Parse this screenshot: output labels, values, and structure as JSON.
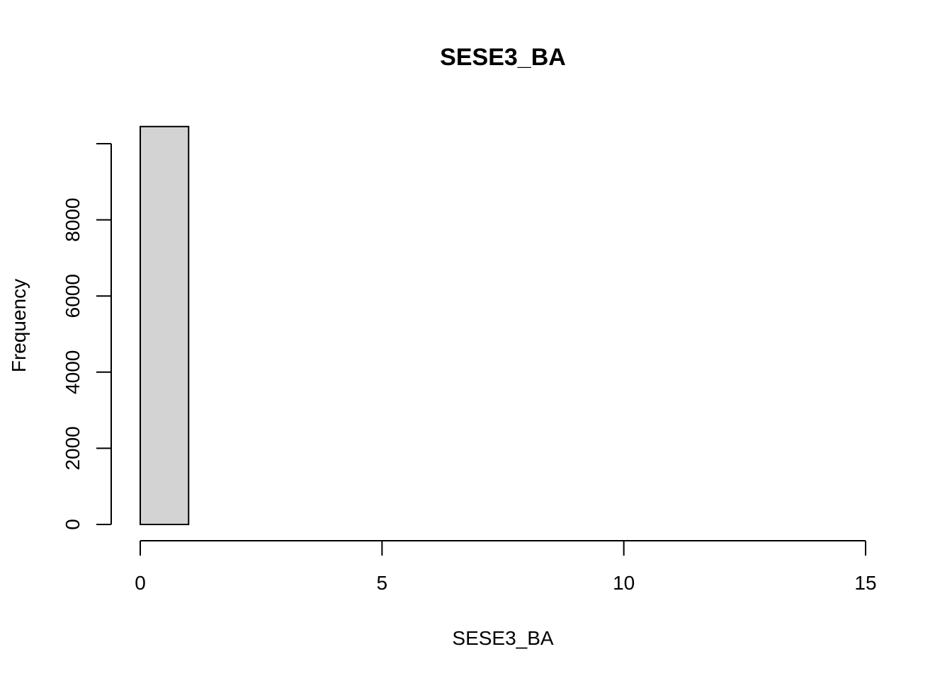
{
  "chart_data": {
    "type": "bar",
    "subtype": "histogram",
    "title": "SESE3_BA",
    "xlabel": "SESE3_BA",
    "ylabel": "Frequency",
    "bins": [
      {
        "x0": 0,
        "x1": 1,
        "count": 10450
      },
      {
        "x0": 1,
        "x1": 2,
        "count": 0
      },
      {
        "x0": 2,
        "x1": 3,
        "count": 0
      },
      {
        "x0": 3,
        "x1": 4,
        "count": 0
      },
      {
        "x0": 4,
        "x1": 5,
        "count": 0
      },
      {
        "x0": 5,
        "x1": 6,
        "count": 0
      },
      {
        "x0": 6,
        "x1": 7,
        "count": 0
      },
      {
        "x0": 7,
        "x1": 8,
        "count": 0
      },
      {
        "x0": 8,
        "x1": 9,
        "count": 0
      },
      {
        "x0": 9,
        "x1": 10,
        "count": 0
      },
      {
        "x0": 10,
        "x1": 11,
        "count": 0
      },
      {
        "x0": 11,
        "x1": 12,
        "count": 0
      },
      {
        "x0": 12,
        "x1": 13,
        "count": 0
      },
      {
        "x0": 13,
        "x1": 14,
        "count": 0
      },
      {
        "x0": 14,
        "x1": 15,
        "count": 0
      }
    ],
    "xlim": [
      0,
      15
    ],
    "ylim": [
      0,
      10000
    ],
    "x_ticks": [
      0,
      5,
      10,
      15
    ],
    "y_ticks": [
      0,
      2000,
      4000,
      6000,
      8000
    ],
    "bar_fill": "#d3d3d3",
    "bar_stroke": "#000000",
    "grid": false,
    "legend": "none"
  }
}
